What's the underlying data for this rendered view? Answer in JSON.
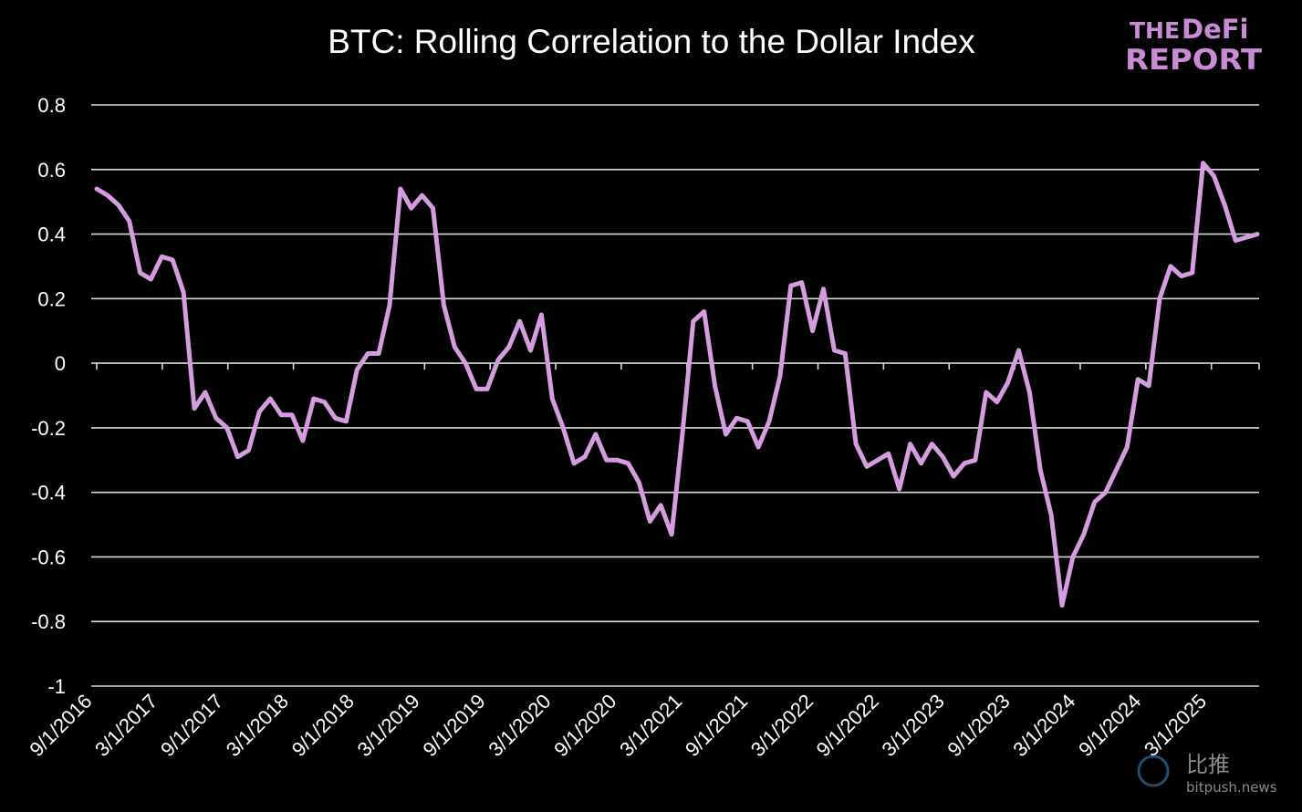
{
  "logo": {
    "line1_a": "THE",
    "line1_b": "DeFi",
    "line2": "REPORT",
    "color": "#c98bd6"
  },
  "watermark": {
    "cn": "比推",
    "en": "bitpush.news"
  },
  "chart_data": {
    "type": "line",
    "title": "BTC: Rolling Correlation to the Dollar Index",
    "xlabel": "",
    "ylabel": "",
    "ylim": [
      -1,
      0.8
    ],
    "yticks": [
      "0.8",
      "0.6",
      "0.4",
      "0.2",
      "0",
      "-0.2",
      "-0.4",
      "-0.6",
      "-0.8",
      "-1"
    ],
    "ytick_values": [
      0.8,
      0.6,
      0.4,
      0.2,
      0,
      -0.2,
      -0.4,
      -0.6,
      -0.8,
      -1
    ],
    "xticks": [
      "9/1/2016",
      "3/1/2017",
      "9/1/2017",
      "3/1/2018",
      "9/1/2018",
      "3/1/2019",
      "9/1/2019",
      "3/1/2020",
      "9/1/2020",
      "3/1/2021",
      "9/1/2021",
      "3/1/2022",
      "9/1/2022",
      "3/1/2023",
      "9/1/2023",
      "3/1/2024",
      "9/1/2024",
      "3/1/2025"
    ],
    "grid": true,
    "line_color": "#d59ce0",
    "series": [
      {
        "values": [
          0.54,
          0.52,
          0.49,
          0.44,
          0.28,
          0.26,
          0.33,
          0.32,
          0.22,
          -0.14,
          -0.09,
          -0.17,
          -0.2,
          -0.29,
          -0.27,
          -0.15,
          -0.11,
          -0.16,
          -0.16,
          -0.24,
          -0.11,
          -0.12,
          -0.17,
          -0.18,
          -0.02,
          0.03,
          0.03,
          0.18,
          0.54,
          0.48,
          0.52,
          0.48,
          0.18,
          0.05,
          0.0,
          -0.08,
          -0.08,
          0.01,
          0.05,
          0.13,
          0.04,
          0.15,
          -0.11,
          -0.2,
          -0.31,
          -0.29,
          -0.22,
          -0.3,
          -0.3,
          -0.31,
          -0.37,
          -0.49,
          -0.44,
          -0.53,
          -0.22,
          0.13,
          0.16,
          -0.07,
          -0.22,
          -0.17,
          -0.18,
          -0.26,
          -0.18,
          -0.04,
          0.24,
          0.25,
          0.1,
          0.23,
          0.04,
          0.03,
          -0.25,
          -0.32,
          -0.3,
          -0.28,
          -0.39,
          -0.25,
          -0.31,
          -0.25,
          -0.29,
          -0.35,
          -0.31,
          -0.3,
          -0.09,
          -0.12,
          -0.06,
          0.04,
          -0.09,
          -0.33,
          -0.47,
          -0.75,
          -0.6,
          -0.53,
          -0.43,
          -0.4,
          -0.33,
          -0.26,
          -0.05,
          -0.07,
          0.2,
          0.3,
          0.27,
          0.28,
          0.62,
          0.58,
          0.49,
          0.38,
          0.39,
          0.4
        ]
      }
    ]
  }
}
